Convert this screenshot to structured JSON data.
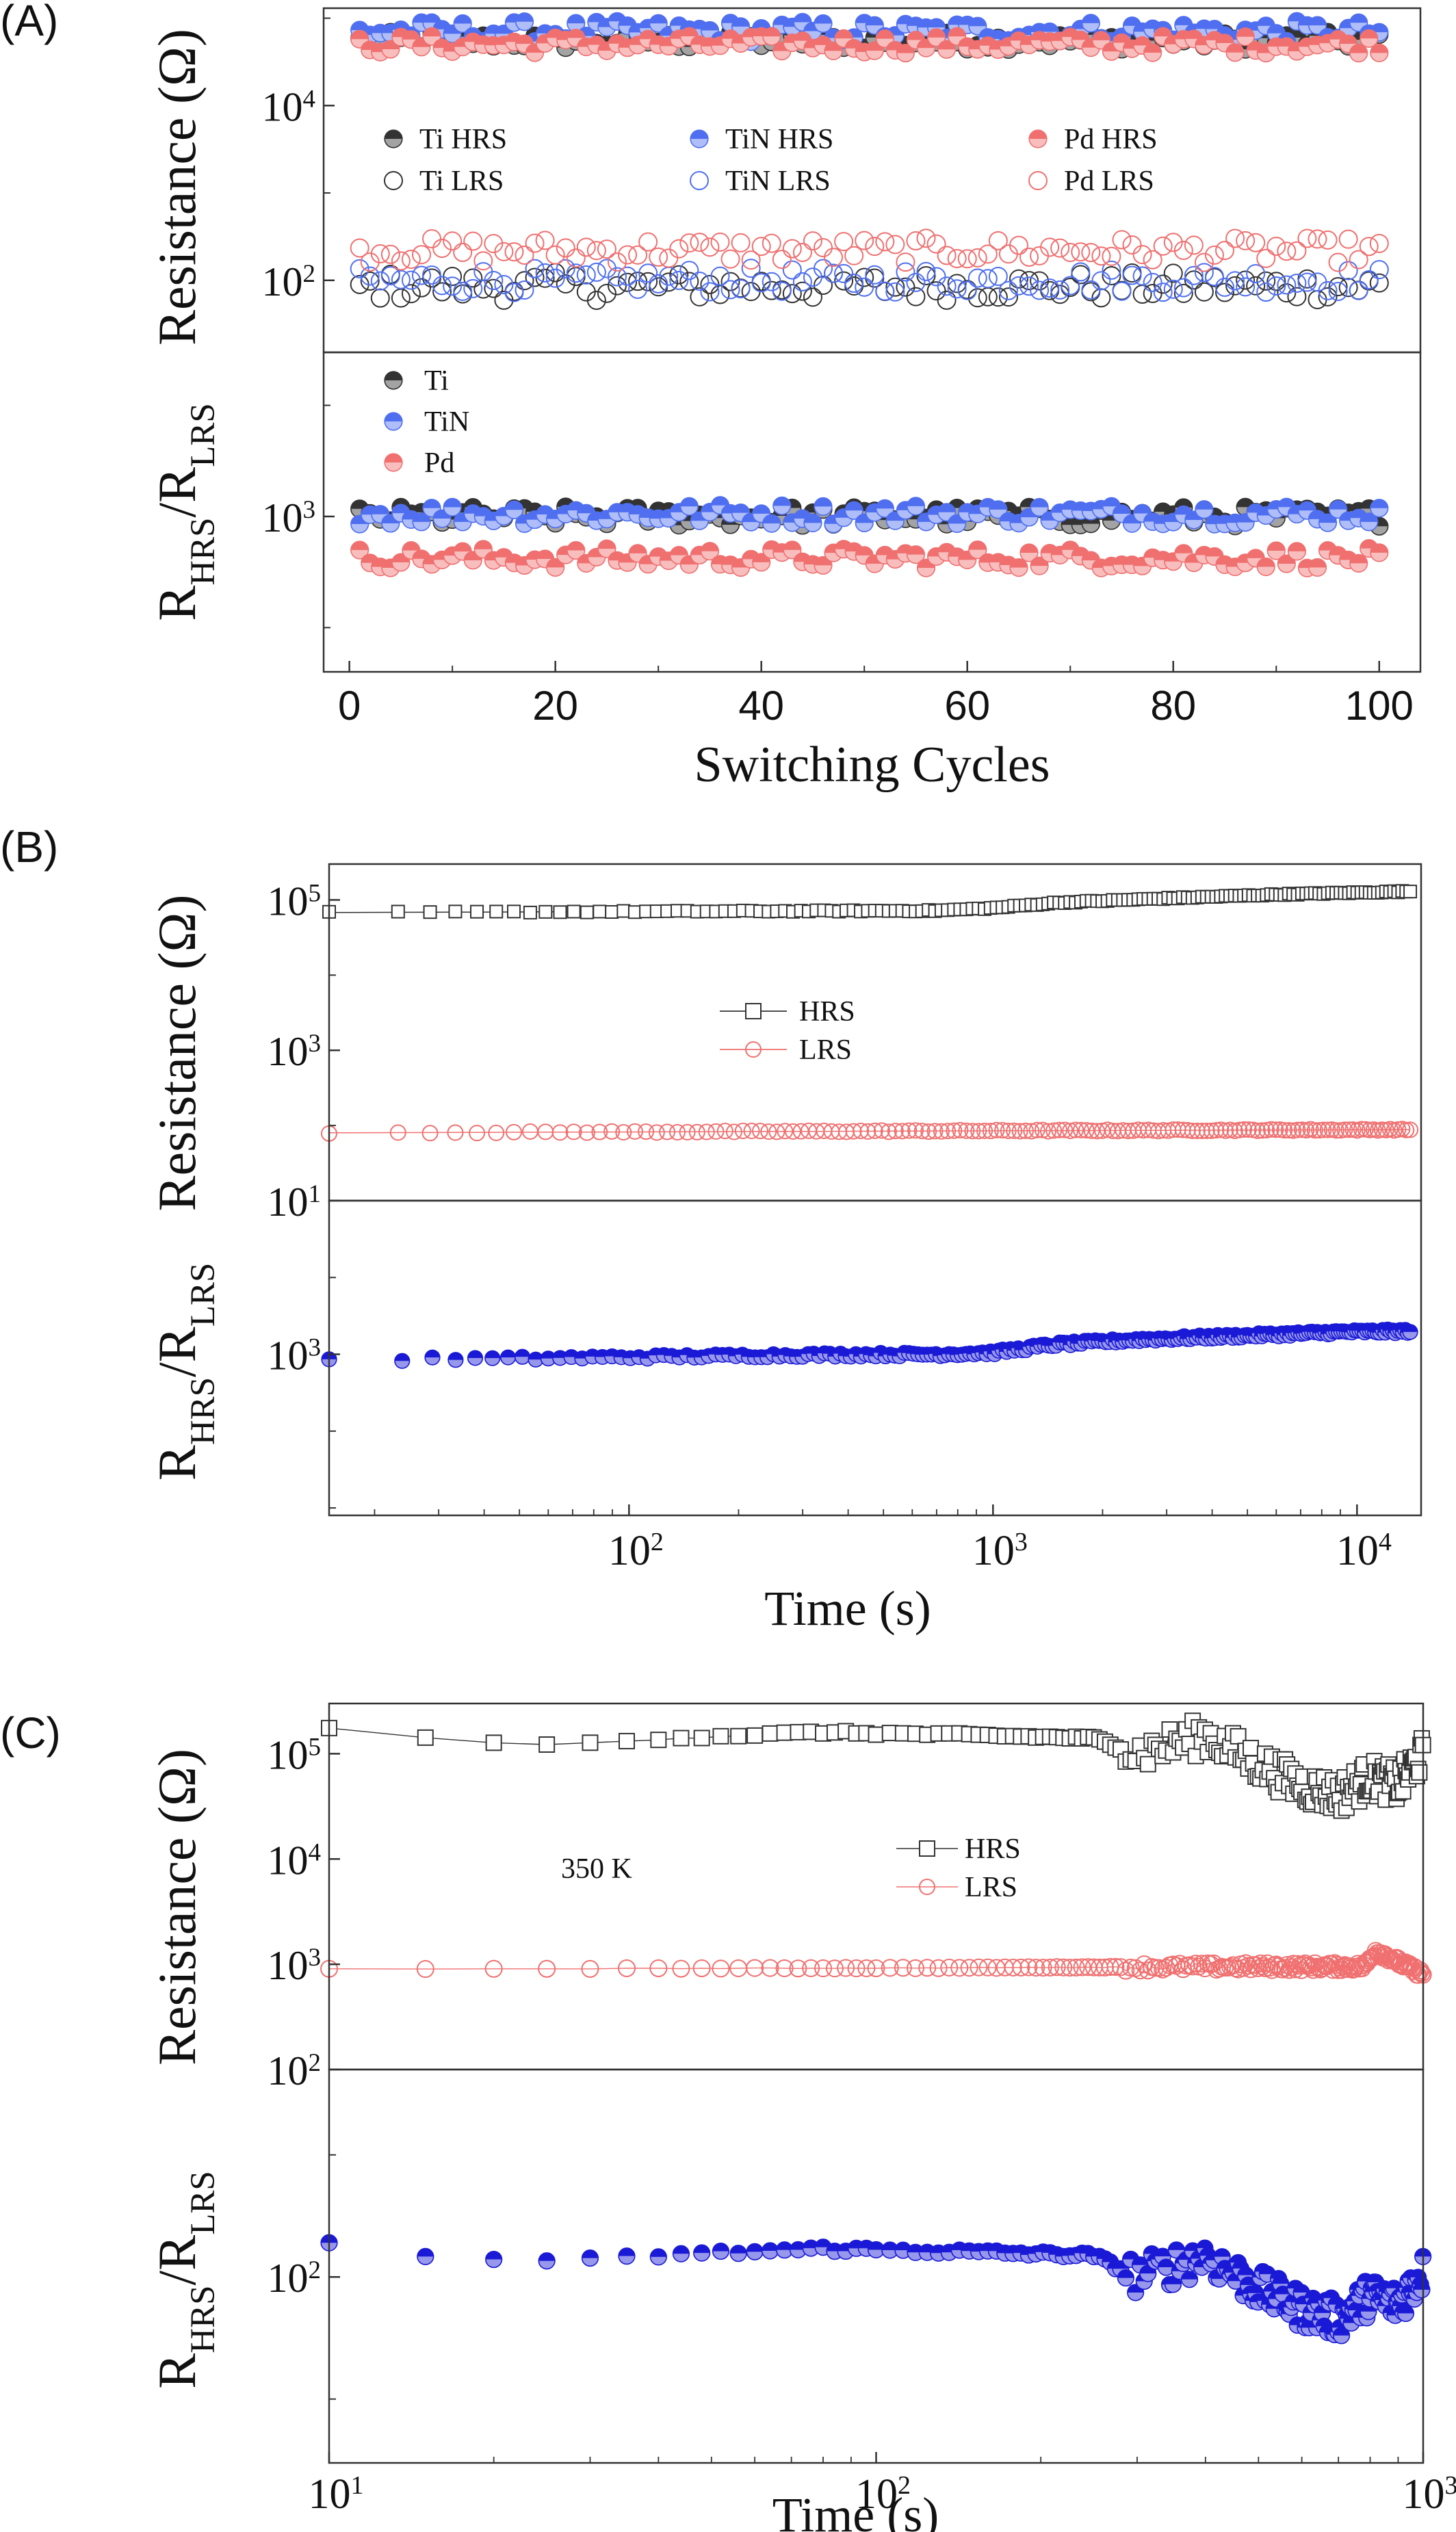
{
  "chart_data": [
    {
      "panel_label": "(A)",
      "type": "scatter",
      "xlabel": "Switching Cycles",
      "x_ticks": [
        "0",
        "20",
        "40",
        "60",
        "80",
        "100"
      ],
      "xlim": [
        -2.5,
        104
      ],
      "subplots": [
        {
          "ylabel_main": "Resistance (Ω)",
          "y_scale": "log",
          "ylim": [
            15,
            130000
          ],
          "y_ticks": [
            {
              "base": "10",
              "exp": "4",
              "value": 10000
            },
            {
              "base": "10",
              "exp": "2",
              "value": 100
            }
          ],
          "legend": {
            "position": "middle",
            "columns": 3
          },
          "series": [
            {
              "name": "Ti HRS",
              "color": "#333333",
              "marker": "filled-circle",
              "typical": 55000
            },
            {
              "name": "Ti LRS",
              "color": "#333333",
              "marker": "open-circle",
              "typical": 85
            },
            {
              "name": "TiN HRS",
              "color": "#4f6ff0",
              "marker": "filled-circle",
              "typical": 70000
            },
            {
              "name": "TiN LRS",
              "color": "#4f6ff0",
              "marker": "open-circle",
              "typical": 100
            },
            {
              "name": "Pd HRS",
              "color": "#f07070",
              "marker": "filled-circle",
              "typical": 50000
            },
            {
              "name": "Pd LRS",
              "color": "#f07070",
              "marker": "open-circle",
              "typical": 220
            }
          ]
        },
        {
          "ylabel_main": "R",
          "ylabel_sub1": "HRS",
          "ylabel_mid": "/R",
          "ylabel_sub2": "LRS",
          "y_scale": "log",
          "ylim": [
            40,
            30000
          ],
          "y_ticks": [
            {
              "base": "10",
              "exp": "3",
              "value": 1000
            }
          ],
          "legend": {
            "position": "top-left",
            "columns": 1
          },
          "series": [
            {
              "name": "Ti",
              "color": "#333333",
              "marker": "filled-circle",
              "typical": 1000
            },
            {
              "name": "TiN",
              "color": "#4f6ff0",
              "marker": "filled-circle",
              "typical": 1050
            },
            {
              "name": "Pd",
              "color": "#f07070",
              "marker": "filled-circle",
              "typical": 420
            }
          ]
        }
      ]
    },
    {
      "panel_label": "(B)",
      "type": "scatter",
      "xlabel": "Time (s)",
      "x_scale": "log",
      "xlim": [
        15,
        15000
      ],
      "x_ticks": [
        {
          "base": "10",
          "exp": "2",
          "value": 100
        },
        {
          "base": "10",
          "exp": "3",
          "value": 1000
        },
        {
          "base": "10",
          "exp": "4",
          "value": 10000
        }
      ],
      "subplots": [
        {
          "ylabel_main": "Resistance (Ω)",
          "y_scale": "log",
          "ylim": [
            10,
            300000
          ],
          "y_ticks": [
            {
              "base": "10",
              "exp": "5",
              "value": 100000
            },
            {
              "base": "10",
              "exp": "3",
              "value": 1000
            },
            {
              "base": "10",
              "exp": "1",
              "value": 10
            }
          ],
          "legend": {
            "position": "center",
            "columns": 1
          },
          "series": [
            {
              "name": "HRS",
              "color": "#333333",
              "marker": "open-square",
              "x": [
                15,
                100,
                700,
                1000,
                1500,
                3000,
                6000,
                14000
              ],
              "y": [
                68000,
                70000,
                72000,
                78000,
                92000,
                105000,
                118000,
                130000
              ]
            },
            {
              "name": "LRS",
              "color": "#f07070",
              "marker": "open-circle",
              "x": [
                15,
                100,
                1000,
                14000
              ],
              "y": [
                80,
                82,
                85,
                88
              ]
            }
          ]
        },
        {
          "ylabel_main": "R",
          "ylabel_sub1": "HRS",
          "ylabel_mid": "/R",
          "ylabel_sub2": "LRS",
          "y_scale": "log",
          "ylim": [
            8,
            100000
          ],
          "y_ticks": [
            {
              "base": "10",
              "exp": "3",
              "value": 1000
            }
          ],
          "series": [
            {
              "name": "",
              "color": "#1a1ad6",
              "marker": "filled-circle",
              "x": [
                15,
                50,
                100,
                300,
                700,
                1000,
                1500,
                2500,
                5000,
                9000,
                14000
              ],
              "y": [
                850,
                880,
                920,
                980,
                1000,
                1050,
                1350,
                1550,
                1750,
                1950,
                2000
              ]
            }
          ]
        }
      ]
    },
    {
      "panel_label": "(C)",
      "type": "scatter",
      "xlabel": "Time (s)",
      "x_scale": "log",
      "xlim": [
        10,
        1000
      ],
      "x_ticks": [
        {
          "base": "10",
          "exp": "1",
          "value": 10
        },
        {
          "base": "10",
          "exp": "2",
          "value": 100
        },
        {
          "base": "10",
          "exp": "3",
          "value": 1000
        }
      ],
      "annotation": "350 K",
      "subplots": [
        {
          "ylabel_main": "Resistance (Ω)",
          "y_scale": "log",
          "ylim": [
            100,
            300000
          ],
          "y_ticks": [
            {
              "base": "10",
              "exp": "5",
              "value": 100000
            },
            {
              "base": "10",
              "exp": "4",
              "value": 10000
            },
            {
              "base": "10",
              "exp": "3",
              "value": 1000
            },
            {
              "base": "10",
              "exp": "2",
              "value": 100
            }
          ],
          "legend": {
            "position": "center-right",
            "columns": 1
          },
          "series": [
            {
              "name": "HRS",
              "color": "#333333",
              "marker": "open-square",
              "x": [
                10,
                15,
                25,
                40,
                80,
                150,
                250,
                300,
                400,
                500,
                600,
                700,
                800,
                900,
                1000
              ],
              "y": [
                170000,
                140000,
                120000,
                140000,
                160000,
                150000,
                140000,
                100000,
                150000,
                80000,
                50000,
                40000,
                60000,
                50000,
                100000
              ]
            },
            {
              "name": "LRS",
              "color": "#f07070",
              "marker": "open-circle",
              "x": [
                10,
                100,
                500,
                780,
                820,
                1000
              ],
              "y": [
                900,
                920,
                950,
                950,
                1350,
                800
              ]
            }
          ]
        },
        {
          "ylabel_main": "R",
          "ylabel_sub1": "HRS",
          "ylabel_mid": "/R",
          "ylabel_sub2": "LRS",
          "y_scale": "log",
          "ylim": [
            3,
            5000
          ],
          "y_ticks": [
            {
              "base": "10",
              "exp": "2",
              "value": 100
            }
          ],
          "series": [
            {
              "name": "",
              "color": "#1a1ad6",
              "marker": "filled-circle",
              "x": [
                10,
                15,
                25,
                40,
                80,
                150,
                250,
                300,
                400,
                500,
                600,
                700,
                800,
                900,
                1000
              ],
              "y": [
                190,
                150,
                130,
                150,
                170,
                160,
                150,
                100,
                150,
                80,
                55,
                45,
                70,
                60,
                110
              ]
            }
          ]
        }
      ]
    }
  ]
}
